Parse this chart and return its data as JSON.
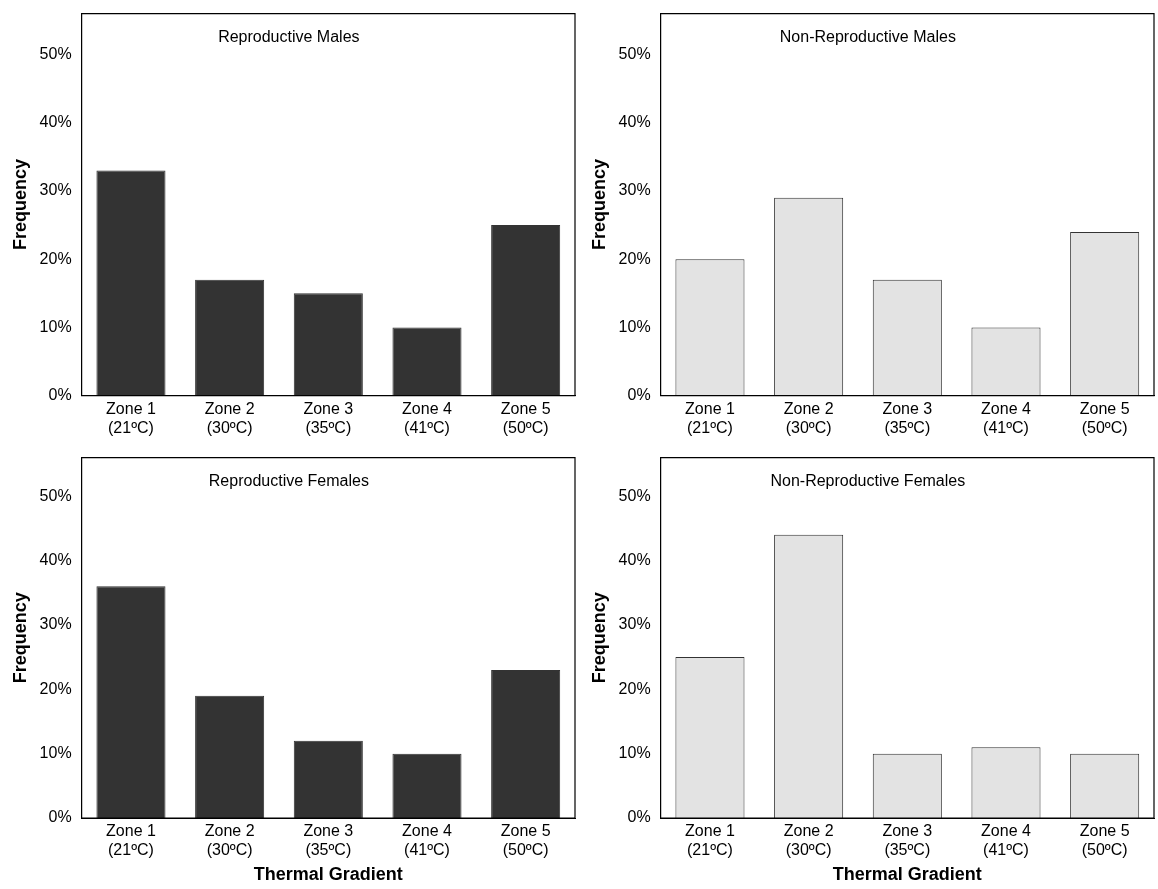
{
  "chart_data": [
    {
      "type": "bar",
      "title": "Reproductive Males",
      "ylabel": "Frequency",
      "categories": [
        "Zone 1 (21ºC)",
        "Zone 2 (30ºC)",
        "Zone 3 (35ºC)",
        "Zone 4 (41ºC)",
        "Zone 5 (50ºC)"
      ],
      "values": [
        33,
        17,
        15,
        10,
        25
      ],
      "color": "#333333",
      "ylim": [
        0,
        56
      ],
      "yticks": [
        {
          "value": 0,
          "label": "0%"
        },
        {
          "value": 10,
          "label": "10%"
        },
        {
          "value": 20,
          "label": "20%"
        },
        {
          "value": 30,
          "label": "30%"
        },
        {
          "value": 40,
          "label": "40%"
        },
        {
          "value": 50,
          "label": "50%"
        }
      ],
      "grid": false,
      "legend": false
    },
    {
      "type": "bar",
      "title": "Non-Reproductive Males",
      "ylabel": "Frequency",
      "categories": [
        "Zone 1 (21ºC)",
        "Zone 2 (30ºC)",
        "Zone 3 (35ºC)",
        "Zone 4 (41ºC)",
        "Zone 5 (50ºC)"
      ],
      "values": [
        20,
        29,
        17,
        10,
        24
      ],
      "color": "#e3e3e3",
      "ylim": [
        0,
        56
      ],
      "yticks": [
        {
          "value": 0,
          "label": "0%"
        },
        {
          "value": 10,
          "label": "10%"
        },
        {
          "value": 20,
          "label": "20%"
        },
        {
          "value": 30,
          "label": "30%"
        },
        {
          "value": 40,
          "label": "40%"
        },
        {
          "value": 50,
          "label": "50%"
        }
      ],
      "grid": false,
      "legend": false
    },
    {
      "type": "bar",
      "title": "Reproductive Females",
      "ylabel": "Frequency",
      "xlabel": "Thermal Gradient",
      "categories": [
        "Zone 1 (21ºC)",
        "Zone 2 (30ºC)",
        "Zone 3 (35ºC)",
        "Zone 4 (41ºC)",
        "Zone 5 (50ºC)"
      ],
      "values": [
        36,
        19,
        12,
        10,
        23
      ],
      "color": "#333333",
      "ylim": [
        0,
        56
      ],
      "yticks": [
        {
          "value": 0,
          "label": "0%"
        },
        {
          "value": 10,
          "label": "10%"
        },
        {
          "value": 20,
          "label": "20%"
        },
        {
          "value": 30,
          "label": "30%"
        },
        {
          "value": 40,
          "label": "40%"
        },
        {
          "value": 50,
          "label": "50%"
        }
      ],
      "grid": false,
      "legend": false
    },
    {
      "type": "bar",
      "title": "Non-Reproductive Females",
      "ylabel": "Frequency",
      "xlabel": "Thermal Gradient",
      "categories": [
        "Zone 1 (21ºC)",
        "Zone 2 (30ºC)",
        "Zone 3 (35ºC)",
        "Zone 4 (41ºC)",
        "Zone 5 (50ºC)"
      ],
      "values": [
        25,
        44,
        10,
        11,
        10
      ],
      "color": "#e3e3e3",
      "ylim": [
        0,
        56
      ],
      "yticks": [
        {
          "value": 0,
          "label": "0%"
        },
        {
          "value": 10,
          "label": "10%"
        },
        {
          "value": 20,
          "label": "20%"
        },
        {
          "value": 30,
          "label": "30%"
        },
        {
          "value": 40,
          "label": "40%"
        },
        {
          "value": 50,
          "label": "50%"
        }
      ],
      "grid": false,
      "legend": false
    }
  ]
}
